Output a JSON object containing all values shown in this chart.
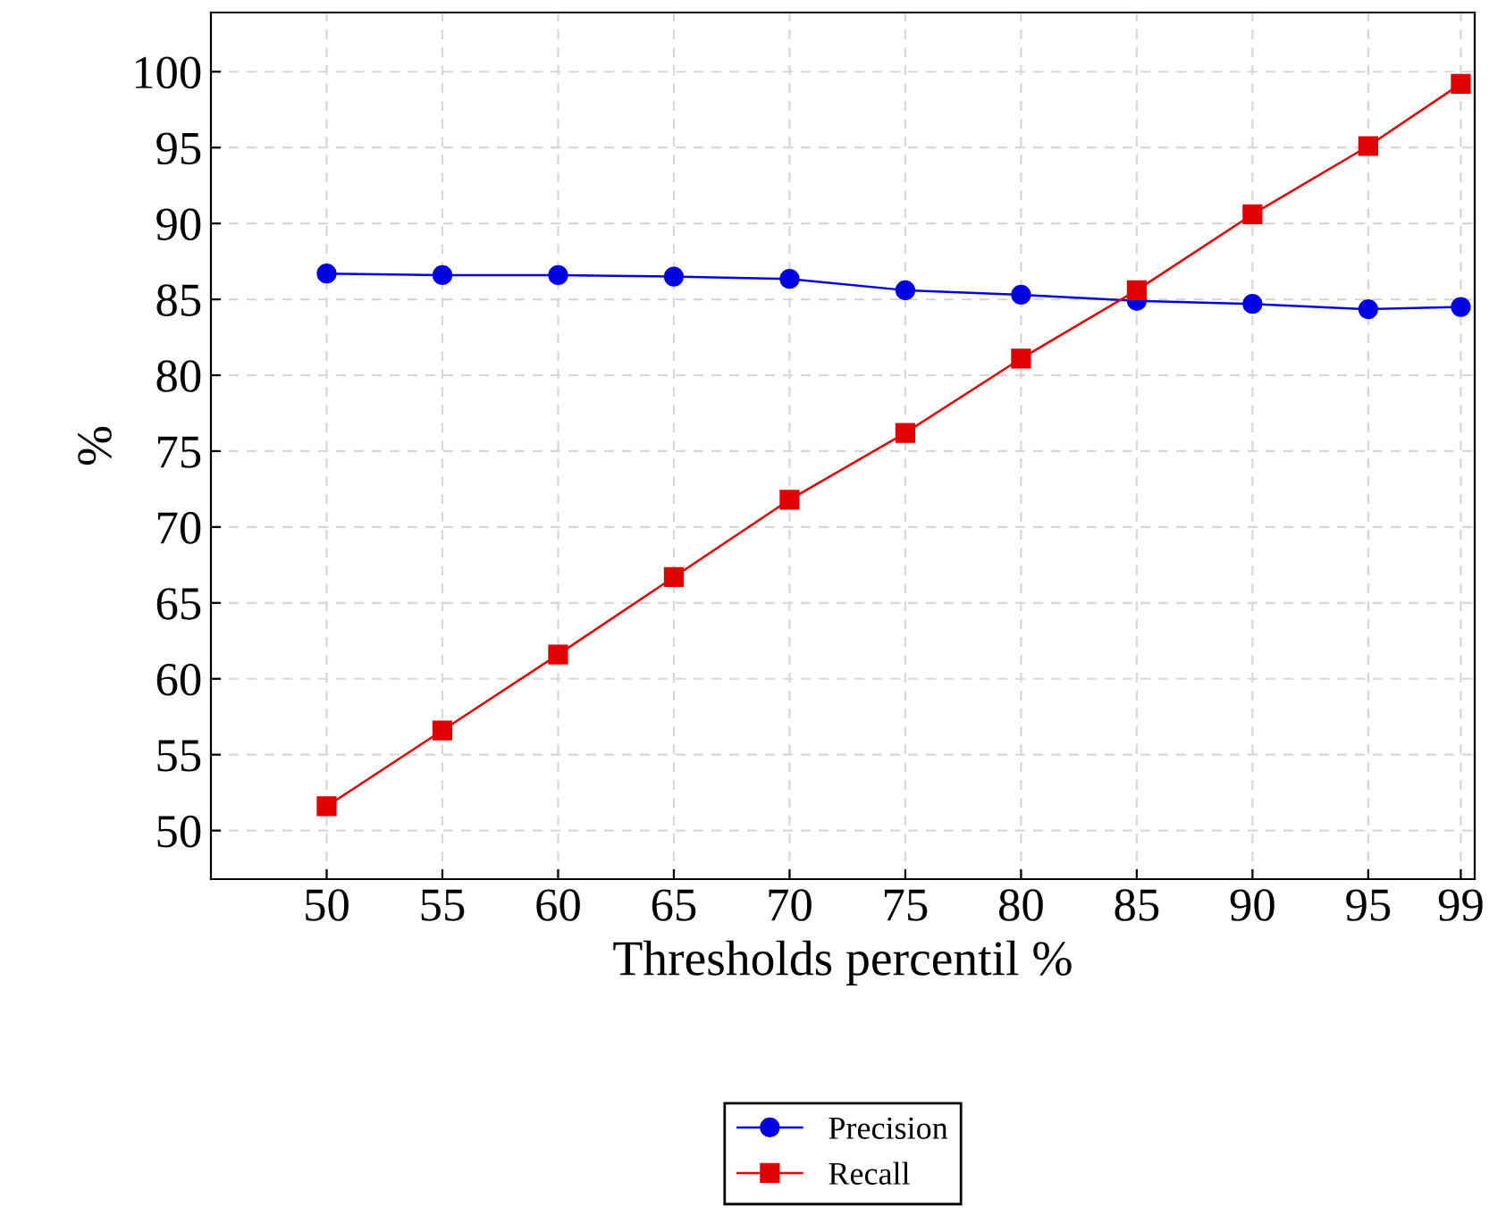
{
  "chart_data": {
    "type": "line",
    "xlabel": "Thresholds percentil %",
    "ylabel": "%",
    "x": [
      50,
      55,
      60,
      65,
      70,
      75,
      80,
      85,
      90,
      95,
      99
    ],
    "series": [
      {
        "name": "Precision",
        "color": "#0000e0",
        "marker": "circle",
        "values": [
          86.7,
          86.6,
          86.6,
          86.5,
          86.35,
          85.6,
          85.3,
          84.9,
          84.7,
          84.35,
          84.5
        ]
      },
      {
        "name": "Recall",
        "color": "#e00000",
        "marker": "square",
        "values": [
          51.6,
          56.6,
          61.6,
          66.7,
          71.8,
          76.2,
          81.1,
          85.6,
          90.6,
          95.1,
          99.2
        ]
      }
    ],
    "xlim": [
      45,
      99.6
    ],
    "ylim": [
      46.8,
      103.9
    ],
    "xticks": [
      50,
      55,
      60,
      65,
      70,
      75,
      80,
      85,
      90,
      95,
      99
    ],
    "yticks": [
      50,
      55,
      60,
      65,
      70,
      75,
      80,
      85,
      90,
      95,
      100
    ],
    "grid": true,
    "legend": "bottom",
    "line_style": "solid"
  }
}
